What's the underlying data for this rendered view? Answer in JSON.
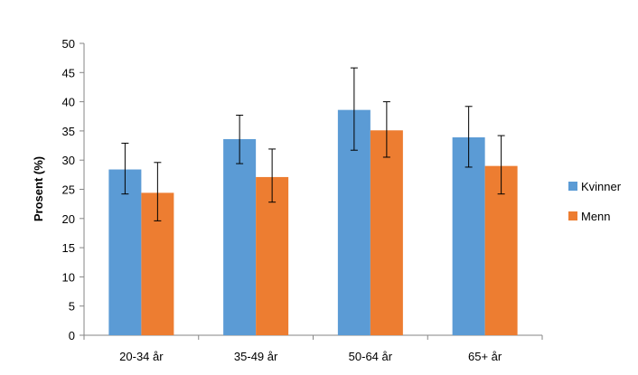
{
  "chart_data": {
    "type": "bar",
    "categories": [
      "20-34 år",
      "35-49 år",
      "50-64 år",
      "65+ år"
    ],
    "series": [
      {
        "name": "Kvinner",
        "color": "#5b9bd5",
        "values": [
          28.4,
          33.6,
          38.6,
          33.9
        ],
        "error_low": [
          24.2,
          29.4,
          31.7,
          28.8
        ],
        "error_high": [
          32.9,
          37.7,
          45.8,
          39.2
        ]
      },
      {
        "name": "Menn",
        "color": "#ed7d31",
        "values": [
          24.4,
          27.1,
          35.1,
          29.0
        ],
        "error_low": [
          19.6,
          22.8,
          30.5,
          24.2
        ],
        "error_high": [
          29.6,
          31.9,
          40.0,
          34.2
        ]
      }
    ],
    "ylabel": "Prosent (%)",
    "xlabel": "",
    "ylim": [
      0,
      50
    ],
    "yticks": [
      "0",
      "5",
      "10",
      "15",
      "20",
      "25",
      "30",
      "35",
      "40",
      "45",
      "50"
    ],
    "legend_position": "right",
    "grid": false
  }
}
